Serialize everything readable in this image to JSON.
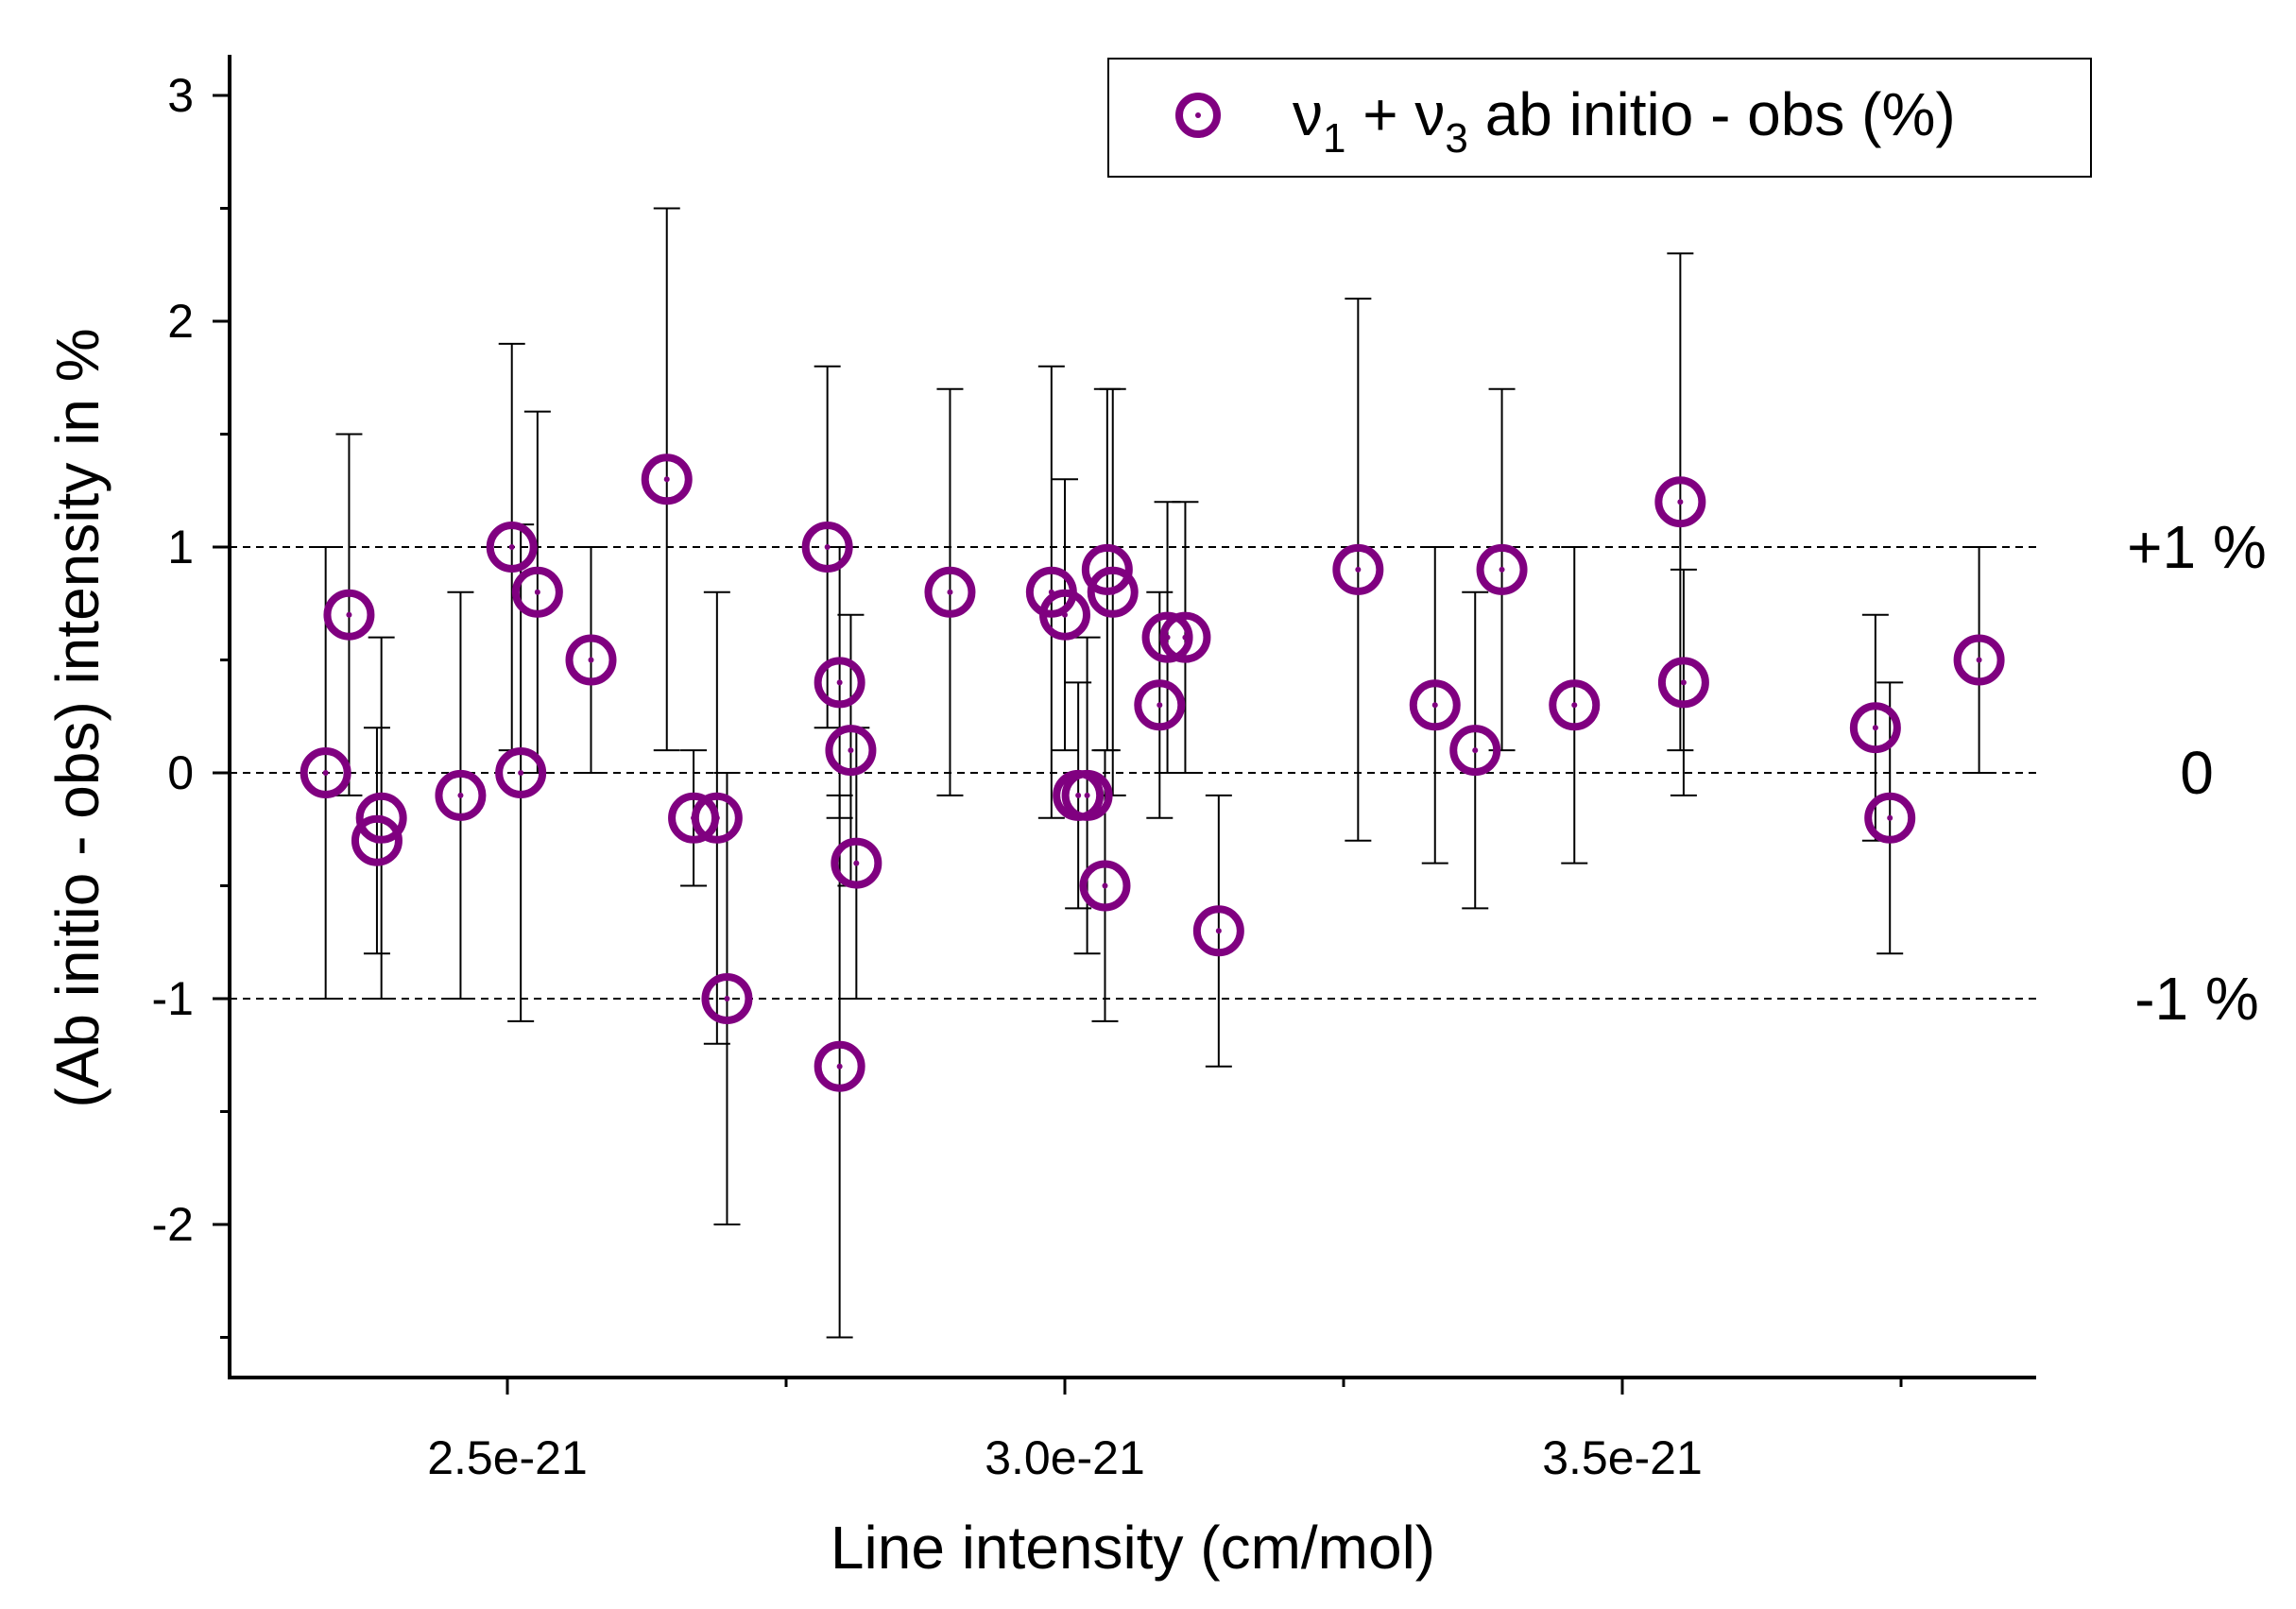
{
  "chart_data": {
    "type": "scatter",
    "xlabel": "Line intensity (cm/mol)",
    "ylabel": "(Ab initio - obs) intensity in %",
    "xlim": [
      2.28e-21,
      3.89e-21
    ],
    "ylim": [
      -2.6,
      3.2
    ],
    "x_ticks": [
      2.5e-21,
      3e-21,
      3.5e-21
    ],
    "x_tick_labels": [
      "2.5e-21",
      "3.0e-21",
      "3.5e-21"
    ],
    "y_ticks": [
      -2,
      -1,
      0,
      1,
      2,
      3
    ],
    "y_tick_labels": [
      "-2",
      "-1",
      "0",
      "1",
      "2",
      "3"
    ],
    "reference_lines": [
      {
        "y": 1,
        "label": "+1 %"
      },
      {
        "y": 0,
        "label": "0"
      },
      {
        "y": -1,
        "label": "-1 %"
      }
    ],
    "grid": false,
    "legend_position": "top-right",
    "series": [
      {
        "name": "v1 + v3 ab initio - obs (%)",
        "legend": {
          "sym": "ν",
          "s1": "1",
          "mid": " + ",
          "sym2": "ν",
          "s2": "3",
          "rest": " ab initio - obs (%)"
        },
        "color": "#800080",
        "points": [
          {
            "x": 2.337e-21,
            "y": 0.0,
            "lo": -1.0,
            "hi": 1.0
          },
          {
            "x": 2.358e-21,
            "y": 0.7,
            "lo": -0.1,
            "hi": 1.5
          },
          {
            "x": 2.387e-21,
            "y": -0.2,
            "lo": -1.0,
            "hi": 0.6
          },
          {
            "x": 2.383e-21,
            "y": -0.3,
            "lo": -0.8,
            "hi": 0.2
          },
          {
            "x": 2.458e-21,
            "y": -0.1,
            "lo": -1.0,
            "hi": 0.8
          },
          {
            "x": 2.504e-21,
            "y": 1.0,
            "lo": 0.1,
            "hi": 1.9
          },
          {
            "x": 2.512e-21,
            "y": 0.0,
            "lo": -1.1,
            "hi": 1.1
          },
          {
            "x": 2.527e-21,
            "y": 0.8,
            "lo": 0.0,
            "hi": 1.6
          },
          {
            "x": 2.575e-21,
            "y": 0.5,
            "lo": 0.0,
            "hi": 1.0
          },
          {
            "x": 2.643e-21,
            "y": 1.3,
            "lo": 0.1,
            "hi": 2.5
          },
          {
            "x": 2.667e-21,
            "y": -0.2,
            "lo": -0.5,
            "hi": 0.1
          },
          {
            "x": 2.688e-21,
            "y": -0.2,
            "lo": -1.2,
            "hi": 0.8
          },
          {
            "x": 2.697e-21,
            "y": -1.0,
            "lo": -2.0,
            "hi": 0.0
          },
          {
            "x": 2.787e-21,
            "y": 1.0,
            "lo": 0.2,
            "hi": 1.8
          },
          {
            "x": 2.798e-21,
            "y": 0.4,
            "lo": -0.2,
            "hi": 1.0
          },
          {
            "x": 2.798e-21,
            "y": -1.3,
            "lo": -2.5,
            "hi": -0.1
          },
          {
            "x": 2.808e-21,
            "y": 0.1,
            "lo": -0.5,
            "hi": 0.7
          },
          {
            "x": 2.813e-21,
            "y": -0.4,
            "lo": -1.0,
            "hi": 0.2
          },
          {
            "x": 2.897e-21,
            "y": 0.8,
            "lo": -0.1,
            "hi": 1.7
          },
          {
            "x": 2.988e-21,
            "y": 0.8,
            "lo": -0.2,
            "hi": 1.8
          },
          {
            "x": 3e-21,
            "y": 0.7,
            "lo": 0.1,
            "hi": 1.3
          },
          {
            "x": 3.012e-21,
            "y": -0.1,
            "lo": -0.6,
            "hi": 0.4
          },
          {
            "x": 3.02e-21,
            "y": -0.1,
            "lo": -0.8,
            "hi": 0.6
          },
          {
            "x": 3.038e-21,
            "y": 0.9,
            "lo": 0.1,
            "hi": 1.7
          },
          {
            "x": 3.043e-21,
            "y": 0.8,
            "lo": -0.1,
            "hi": 1.7
          },
          {
            "x": 3.036e-21,
            "y": -0.5,
            "lo": -1.1,
            "hi": 0.1
          },
          {
            "x": 3.085e-21,
            "y": 0.3,
            "lo": -0.2,
            "hi": 0.8
          },
          {
            "x": 3.092e-21,
            "y": 0.6,
            "lo": 0.0,
            "hi": 1.2
          },
          {
            "x": 3.108e-21,
            "y": 0.6,
            "lo": 0.0,
            "hi": 1.2
          },
          {
            "x": 3.138e-21,
            "y": -0.7,
            "lo": -1.3,
            "hi": -0.1
          },
          {
            "x": 3.263e-21,
            "y": 0.9,
            "lo": -0.3,
            "hi": 2.1
          },
          {
            "x": 3.332e-21,
            "y": 0.3,
            "lo": -0.4,
            "hi": 1.0
          },
          {
            "x": 3.368e-21,
            "y": 0.1,
            "lo": -0.6,
            "hi": 0.8
          },
          {
            "x": 3.392e-21,
            "y": 0.9,
            "lo": 0.1,
            "hi": 1.7
          },
          {
            "x": 3.457e-21,
            "y": 0.3,
            "lo": -0.4,
            "hi": 1.0
          },
          {
            "x": 3.552e-21,
            "y": 1.2,
            "lo": 0.1,
            "hi": 2.3
          },
          {
            "x": 3.555e-21,
            "y": 0.4,
            "lo": -0.1,
            "hi": 0.9
          },
          {
            "x": 3.727e-21,
            "y": 0.2,
            "lo": -0.3,
            "hi": 0.7
          },
          {
            "x": 3.74e-21,
            "y": -0.2,
            "lo": -0.8,
            "hi": 0.4
          },
          {
            "x": 3.82e-21,
            "y": 0.5,
            "lo": 0.0,
            "hi": 1.0
          }
        ]
      }
    ]
  }
}
